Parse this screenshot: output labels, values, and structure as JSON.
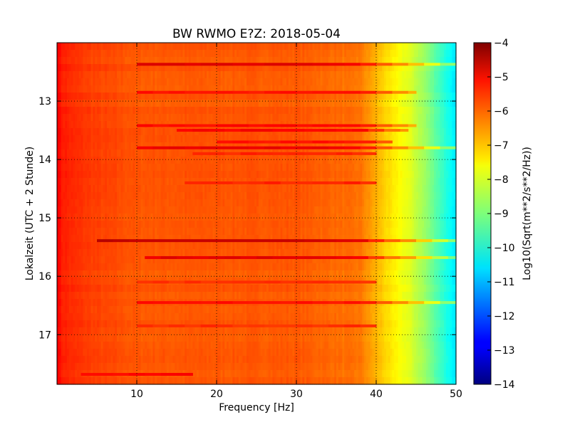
{
  "chart_data": {
    "type": "heatmap",
    "title": "BW RWMO E?Z: 2018-05-04",
    "xlabel": "Frequency [Hz]",
    "ylabel": "Lokalzeit (UTC + 2 Stunde)",
    "xlim": [
      0,
      50
    ],
    "ylim": [
      12.0,
      17.85
    ],
    "y_inverted": true,
    "x_ticks": [
      10,
      20,
      30,
      40,
      50
    ],
    "x_tick_labels": [
      "10",
      "20",
      "30",
      "40",
      "50"
    ],
    "y_ticks": [
      13,
      14,
      15,
      16,
      17
    ],
    "y_tick_labels": [
      "13",
      "14",
      "15",
      "16",
      "17"
    ],
    "grid": true,
    "colormap": "jet",
    "colorbar": {
      "label": "Log10(Sqrt(m**2/s**2/Hz))",
      "range": [
        -14,
        -4
      ],
      "ticks": [
        -4,
        -5,
        -6,
        -7,
        -8,
        -9,
        -10,
        -11,
        -12,
        -13,
        -14
      ],
      "tick_labels": [
        "−4",
        "−5",
        "−6",
        "−7",
        "−8",
        "−9",
        "−10",
        "−11",
        "−12",
        "−13",
        "−14"
      ]
    },
    "spectral_profile": {
      "frequency_hz": [
        0,
        0.5,
        2,
        5,
        10,
        20,
        30,
        38,
        40,
        42,
        44,
        46,
        48,
        50
      ],
      "log10_amplitude": [
        -5.0,
        -5.5,
        -5.7,
        -5.9,
        -6.1,
        -6.1,
        -6.1,
        -6.4,
        -7.0,
        -7.6,
        -8.0,
        -8.7,
        -9.6,
        -10.5
      ]
    },
    "bands": [
      {
        "time": 12.37,
        "f_start": 10,
        "f_end": 50,
        "level": -4.9
      },
      {
        "time": 12.85,
        "f_start": 10,
        "f_end": 45,
        "level": -5.4
      },
      {
        "time": 13.42,
        "f_start": 10,
        "f_end": 45,
        "level": -5.3
      },
      {
        "time": 13.5,
        "f_start": 15,
        "f_end": 44,
        "level": -5.2
      },
      {
        "time": 13.7,
        "f_start": 20,
        "f_end": 42,
        "level": -5.4
      },
      {
        "time": 13.8,
        "f_start": 10,
        "f_end": 50,
        "level": -5.1
      },
      {
        "time": 13.9,
        "f_start": 17,
        "f_end": 40,
        "level": -5.6
      },
      {
        "time": 14.4,
        "f_start": 16,
        "f_end": 40,
        "level": -5.6
      },
      {
        "time": 15.39,
        "f_start": 5,
        "f_end": 50,
        "level": -4.4
      },
      {
        "time": 15.68,
        "f_start": 11,
        "f_end": 50,
        "level": -5.0
      },
      {
        "time": 16.1,
        "f_start": 10,
        "f_end": 40,
        "level": -5.7
      },
      {
        "time": 16.45,
        "f_start": 10,
        "f_end": 50,
        "level": -5.4
      },
      {
        "time": 16.85,
        "f_start": 10,
        "f_end": 40,
        "level": -5.7
      },
      {
        "time": 17.68,
        "f_start": 3,
        "f_end": 17,
        "level": -5.3
      }
    ]
  }
}
